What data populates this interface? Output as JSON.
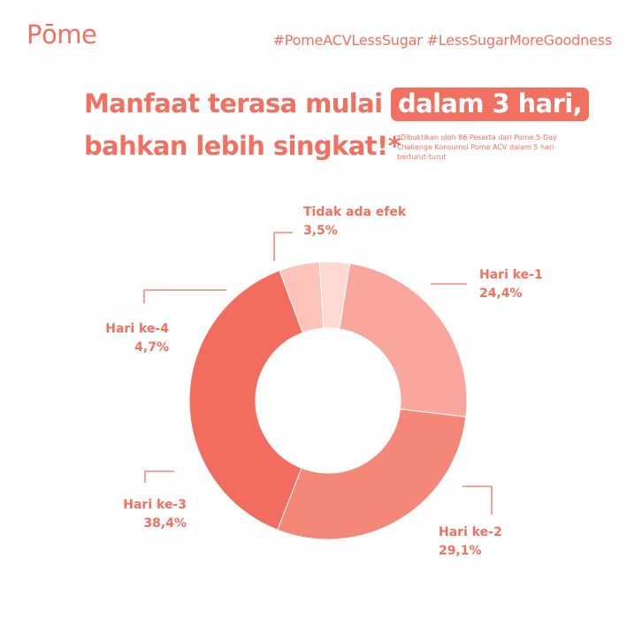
{
  "brand": "Pōme",
  "hashtags": "#PomeACVLessSugar #LessSugarMoreGoodness",
  "headline": {
    "line1_prefix": "Manfaat terasa mulai",
    "line1_highlight": "dalam 3 hari,",
    "line2": "bahkan lebih singkat!*"
  },
  "footnote": "*Dibuktikan oleh 86 Peserta dari Pome 5-Day Challenge Konsumsi Pome ACV dalam 5 hari berturut-turut",
  "colors": {
    "accent": "#f2705f",
    "text": "#f2705f"
  },
  "chart_data": {
    "type": "pie",
    "subtype": "donut",
    "categories": [
      "Hari ke-1",
      "Hari ke-2",
      "Hari ke-3",
      "Hari ke-4",
      "Tidak ada efek"
    ],
    "values": [
      24.4,
      29.1,
      38.4,
      4.7,
      3.5
    ],
    "value_labels": [
      "24,4%",
      "29,1%",
      "38,4%",
      "4,7%",
      "3,5%"
    ],
    "colors": [
      "#f9a79c",
      "#f58779",
      "#f26d5f",
      "#fcc3bb",
      "#fed8d3"
    ],
    "legend": "none"
  }
}
